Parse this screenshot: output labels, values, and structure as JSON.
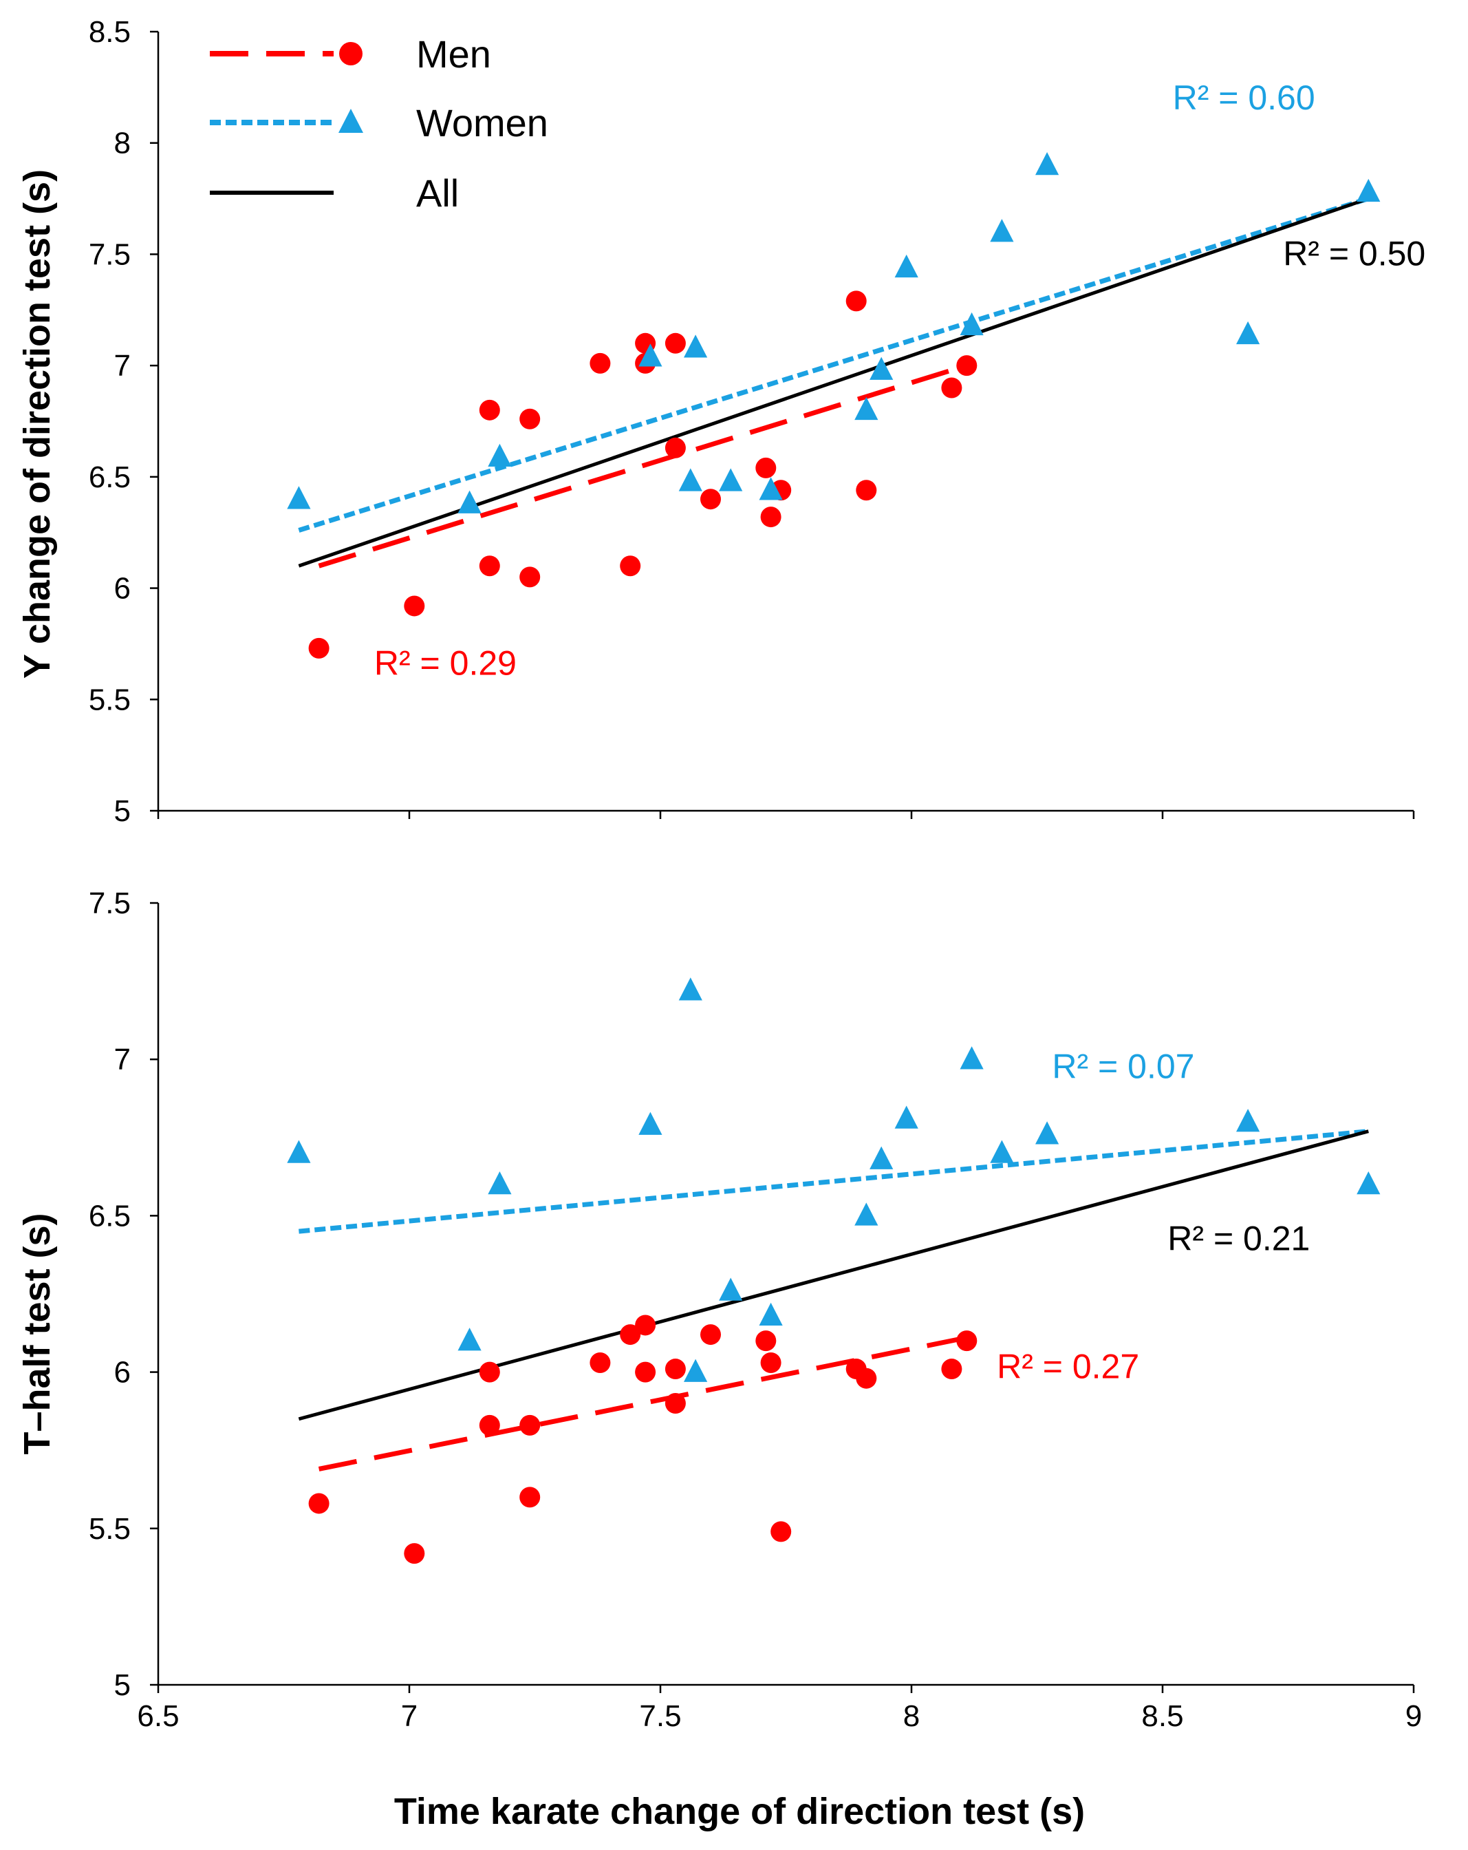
{
  "colors": {
    "men": "#ff0000",
    "women": "#1ba1e2",
    "all": "#000000"
  },
  "legend": {
    "items": [
      {
        "key": "men",
        "label": "Men",
        "style": "long-dash",
        "marker": "circle"
      },
      {
        "key": "women",
        "label": "Women",
        "style": "short-dash",
        "marker": "triangle"
      },
      {
        "key": "all",
        "label": "All",
        "style": "solid",
        "marker": "none"
      }
    ]
  },
  "chart_data": [
    {
      "type": "scatter",
      "title": "",
      "xlabel": "Time karate change of direction test (s)",
      "ylabel": "Y change of direction test (s)",
      "xlim": [
        6.5,
        9
      ],
      "ylim": [
        5,
        8.5
      ],
      "xticks": [
        "6.5",
        "7",
        "7.5",
        "8",
        "8.5",
        "9"
      ],
      "yticks": [
        "5",
        "5.5",
        "6",
        "6.5",
        "7",
        "7.5",
        "8",
        "8.5"
      ],
      "series": [
        {
          "name": "Men",
          "key": "men",
          "marker": "circle",
          "points": [
            [
              6.82,
              5.73
            ],
            [
              7.01,
              5.92
            ],
            [
              7.16,
              6.8
            ],
            [
              7.16,
              6.1
            ],
            [
              7.24,
              6.76
            ],
            [
              7.24,
              6.05
            ],
            [
              7.38,
              7.01
            ],
            [
              7.44,
              6.1
            ],
            [
              7.47,
              7.1
            ],
            [
              7.47,
              7.01
            ],
            [
              7.53,
              7.1
            ],
            [
              7.53,
              6.63
            ],
            [
              7.6,
              6.4
            ],
            [
              7.71,
              6.54
            ],
            [
              7.72,
              6.32
            ],
            [
              7.74,
              6.44
            ],
            [
              7.89,
              7.29
            ],
            [
              7.91,
              6.44
            ],
            [
              8.08,
              6.9
            ],
            [
              8.11,
              7.0
            ]
          ]
        },
        {
          "name": "Women",
          "key": "women",
          "marker": "triangle",
          "points": [
            [
              6.78,
              6.4
            ],
            [
              7.12,
              6.38
            ],
            [
              7.18,
              6.59
            ],
            [
              7.48,
              7.04
            ],
            [
              7.56,
              6.48
            ],
            [
              7.57,
              7.08
            ],
            [
              7.64,
              6.48
            ],
            [
              7.72,
              6.44
            ],
            [
              7.91,
              6.8
            ],
            [
              7.94,
              6.98
            ],
            [
              7.99,
              7.44
            ],
            [
              8.12,
              7.18
            ],
            [
              8.18,
              7.6
            ],
            [
              8.27,
              7.9
            ],
            [
              8.67,
              7.14
            ],
            [
              8.91,
              7.78
            ]
          ]
        }
      ],
      "trendlines": [
        {
          "name": "Men",
          "key": "men",
          "style": "long-dash",
          "x": [
            6.82,
            8.11
          ],
          "y": [
            6.1,
            7.0
          ]
        },
        {
          "name": "Women",
          "key": "women",
          "style": "short-dash",
          "x": [
            6.78,
            8.91
          ],
          "y": [
            6.26,
            7.75
          ]
        },
        {
          "name": "All",
          "key": "all",
          "style": "solid",
          "x": [
            6.78,
            8.91
          ],
          "y": [
            6.1,
            7.75
          ]
        }
      ],
      "annotations": [
        {
          "key": "women",
          "text": "R² = 0.60",
          "anchor_x": 8.52,
          "anchor_y": 8.15
        },
        {
          "key": "all",
          "text": "R² = 0.50",
          "anchor_x": 8.74,
          "anchor_y": 7.45
        },
        {
          "key": "men",
          "text": "R² = 0.29",
          "anchor_x": 6.93,
          "anchor_y": 5.61
        }
      ]
    },
    {
      "type": "scatter",
      "title": "",
      "xlabel": "Time karate change of direction test (s)",
      "ylabel": "T–half test (s)",
      "xlim": [
        6.5,
        9
      ],
      "ylim": [
        5,
        7.5
      ],
      "xticks": [
        "6.5",
        "7",
        "7.5",
        "8",
        "8.5",
        "9"
      ],
      "yticks": [
        "5",
        "5.5",
        "6",
        "6.5",
        "7",
        "7.5"
      ],
      "series": [
        {
          "name": "Men",
          "key": "men",
          "marker": "circle",
          "points": [
            [
              6.82,
              5.58
            ],
            [
              7.01,
              5.42
            ],
            [
              7.16,
              6.0
            ],
            [
              7.16,
              5.83
            ],
            [
              7.24,
              5.83
            ],
            [
              7.24,
              5.6
            ],
            [
              7.38,
              6.03
            ],
            [
              7.44,
              6.12
            ],
            [
              7.47,
              6.15
            ],
            [
              7.47,
              6.0
            ],
            [
              7.53,
              6.01
            ],
            [
              7.53,
              5.9
            ],
            [
              7.6,
              6.12
            ],
            [
              7.71,
              6.1
            ],
            [
              7.72,
              6.03
            ],
            [
              7.74,
              5.49
            ],
            [
              7.89,
              6.01
            ],
            [
              7.91,
              5.98
            ],
            [
              8.08,
              6.01
            ],
            [
              8.11,
              6.1
            ]
          ]
        },
        {
          "name": "Women",
          "key": "women",
          "marker": "triangle",
          "points": [
            [
              6.78,
              6.7
            ],
            [
              7.12,
              6.1
            ],
            [
              7.18,
              6.6
            ],
            [
              7.48,
              6.79
            ],
            [
              7.56,
              7.22
            ],
            [
              7.57,
              6.0
            ],
            [
              7.64,
              6.26
            ],
            [
              7.72,
              6.18
            ],
            [
              7.91,
              6.5
            ],
            [
              7.94,
              6.68
            ],
            [
              7.99,
              6.81
            ],
            [
              8.12,
              7.0
            ],
            [
              8.18,
              6.7
            ],
            [
              8.27,
              6.76
            ],
            [
              8.67,
              6.8
            ],
            [
              8.91,
              6.6
            ]
          ]
        }
      ],
      "trendlines": [
        {
          "name": "Men",
          "key": "men",
          "style": "long-dash",
          "x": [
            6.82,
            8.11
          ],
          "y": [
            5.69,
            6.11
          ]
        },
        {
          "name": "Women",
          "key": "women",
          "style": "short-dash",
          "x": [
            6.78,
            8.91
          ],
          "y": [
            6.45,
            6.77
          ]
        },
        {
          "name": "All",
          "key": "all",
          "style": "solid",
          "x": [
            6.78,
            8.91
          ],
          "y": [
            5.85,
            6.77
          ]
        }
      ],
      "annotations": [
        {
          "key": "women",
          "text": "R² = 0.07",
          "anchor_x": 8.28,
          "anchor_y": 6.94
        },
        {
          "key": "all",
          "text": "R² = 0.21",
          "anchor_x": 8.51,
          "anchor_y": 6.39
        },
        {
          "key": "men",
          "text": "R² = 0.27",
          "anchor_x": 8.17,
          "anchor_y": 5.98
        }
      ]
    }
  ]
}
